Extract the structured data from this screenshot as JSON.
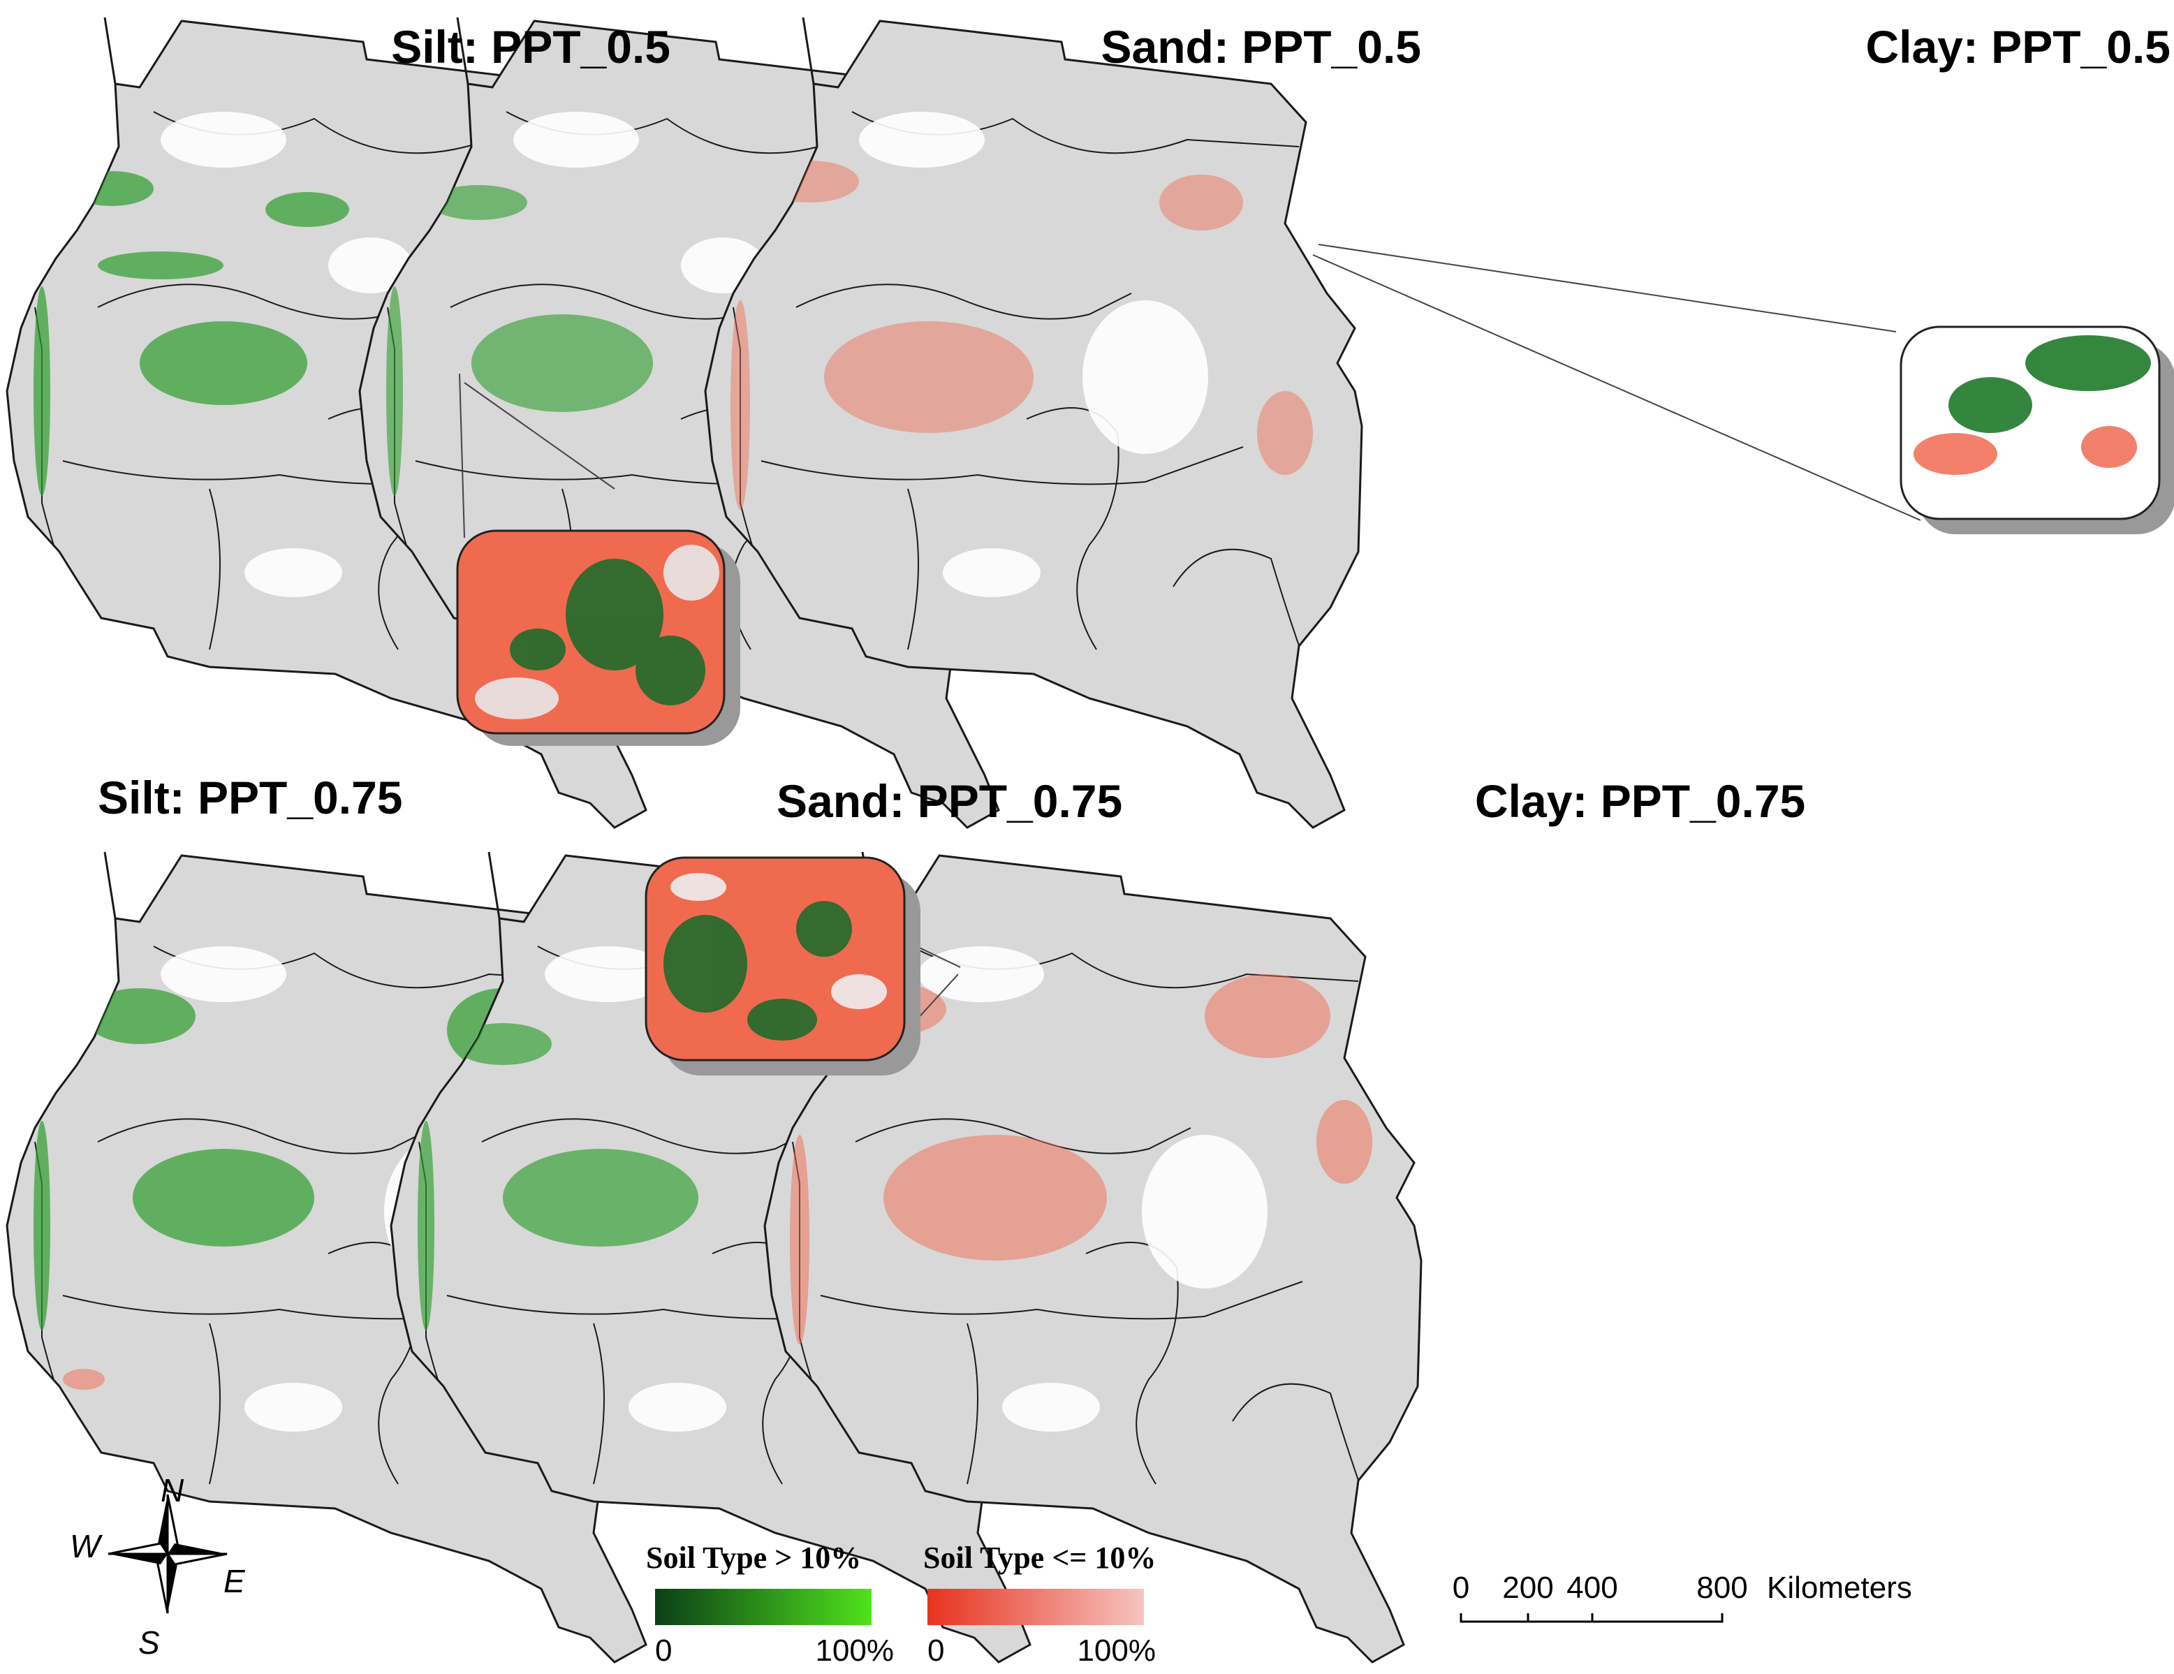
{
  "panels": [
    {
      "title": "Silt: PPT_0.5",
      "color": "#2e9e2e"
    },
    {
      "title": "Sand: PPT_0.5",
      "color": "#2e9e2e"
    },
    {
      "title": "Clay: PPT_0.5",
      "color": "#f06a50"
    },
    {
      "title": "Silt: PPT_0.75",
      "color": "#2e9e2e"
    },
    {
      "title": "Sand: PPT_0.75",
      "color": "#2e9e2e"
    },
    {
      "title": "Clay: PPT_0.75",
      "color": "#f06a50"
    }
  ],
  "legend": {
    "green": {
      "title": "Soil Type > 10%",
      "min": "0",
      "max": "100%",
      "from": "#0b3f17",
      "to": "#4fe21c"
    },
    "red": {
      "title": "Soil Type <= 10%",
      "min": "0",
      "max": "100%",
      "from": "#e8321e",
      "to": "#f6c4c0"
    }
  },
  "scale_bar": {
    "labels": [
      "0",
      "200",
      "400",
      "800"
    ],
    "unit": "Kilometers"
  },
  "compass": {
    "n": "N",
    "s": "S",
    "e": "E",
    "w": "W"
  },
  "colors": {
    "land": "#d8d8d8",
    "outline": "#1a1a1a",
    "green": "#2e9e2e",
    "red": "#f06a50"
  }
}
